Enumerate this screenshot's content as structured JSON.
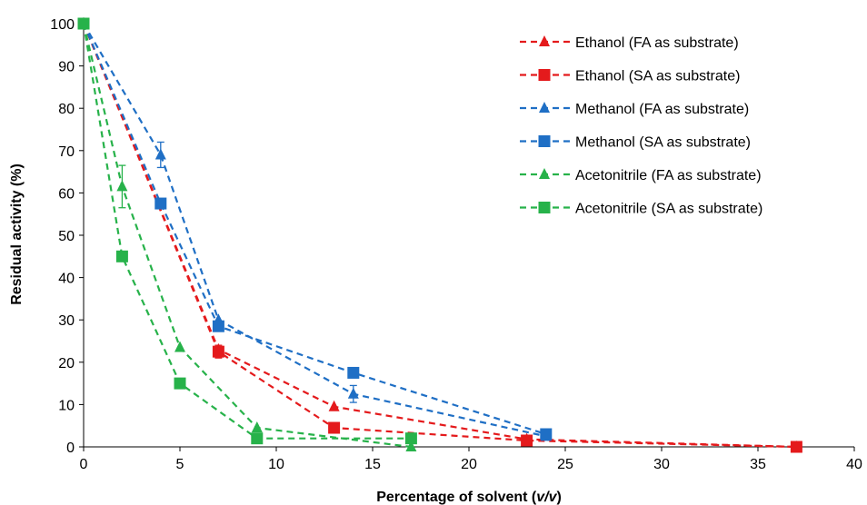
{
  "chart_data": {
    "type": "line",
    "xlabel_prefix": "Percentage of  solvent  (",
    "xlabel_unit": "v/v",
    "xlabel_suffix": ")",
    "ylabel": "Residual activity (%)",
    "xlim": [
      0,
      40
    ],
    "ylim": [
      0,
      100
    ],
    "x_ticks": [
      "0",
      "5",
      "10",
      "15",
      "20",
      "25",
      "30",
      "35",
      "40"
    ],
    "y_ticks": [
      "0",
      "10",
      "20",
      "30",
      "40",
      "50",
      "60",
      "70",
      "80",
      "90",
      "100"
    ],
    "grid": false,
    "legend_position": "top-right",
    "series": [
      {
        "name": "Ethanol (FA as substrate)",
        "color": "#e41a1c",
        "marker": "triangle",
        "line_style": "dashed",
        "points": [
          {
            "x": 0,
            "y": 100
          },
          {
            "x": 7,
            "y": 23
          },
          {
            "x": 13,
            "y": 9.5
          },
          {
            "x": 23,
            "y": 1.8
          },
          {
            "x": 37,
            "y": 0
          }
        ]
      },
      {
        "name": "Ethanol (SA as substrate)",
        "color": "#e41a1c",
        "marker": "square",
        "line_style": "dashed",
        "points": [
          {
            "x": 0,
            "y": 100
          },
          {
            "x": 7,
            "y": 22.5,
            "err": 1.5
          },
          {
            "x": 13,
            "y": 4.5
          },
          {
            "x": 23,
            "y": 1.5
          },
          {
            "x": 37,
            "y": 0
          }
        ]
      },
      {
        "name": "Methanol (FA as substrate)",
        "color": "#1f6fc5",
        "marker": "triangle",
        "line_style": "dashed",
        "points": [
          {
            "x": 0,
            "y": 100
          },
          {
            "x": 4,
            "y": 69,
            "err": 3
          },
          {
            "x": 7,
            "y": 30
          },
          {
            "x": 14,
            "y": 12.5,
            "err": 2
          },
          {
            "x": 24,
            "y": 2.5
          }
        ]
      },
      {
        "name": "Methanol (SA as substrate)",
        "color": "#1f6fc5",
        "marker": "square",
        "line_style": "dashed",
        "points": [
          {
            "x": 0,
            "y": 100
          },
          {
            "x": 4,
            "y": 57.5
          },
          {
            "x": 7,
            "y": 28.5
          },
          {
            "x": 14,
            "y": 17.5
          },
          {
            "x": 24,
            "y": 3
          }
        ]
      },
      {
        "name": "Acetonitrile (FA as substrate)",
        "color": "#27b24a",
        "marker": "triangle",
        "line_style": "dashed",
        "points": [
          {
            "x": 0,
            "y": 100
          },
          {
            "x": 2,
            "y": 61.5,
            "err": 5
          },
          {
            "x": 5,
            "y": 23.5
          },
          {
            "x": 9,
            "y": 4.5
          },
          {
            "x": 17,
            "y": 0
          }
        ]
      },
      {
        "name": "Acetonitrile (SA as substrate)",
        "color": "#27b24a",
        "marker": "square",
        "line_style": "dashed",
        "points": [
          {
            "x": 0,
            "y": 100
          },
          {
            "x": 2,
            "y": 45
          },
          {
            "x": 5,
            "y": 15
          },
          {
            "x": 9,
            "y": 2
          },
          {
            "x": 17,
            "y": 2
          }
        ]
      }
    ]
  }
}
